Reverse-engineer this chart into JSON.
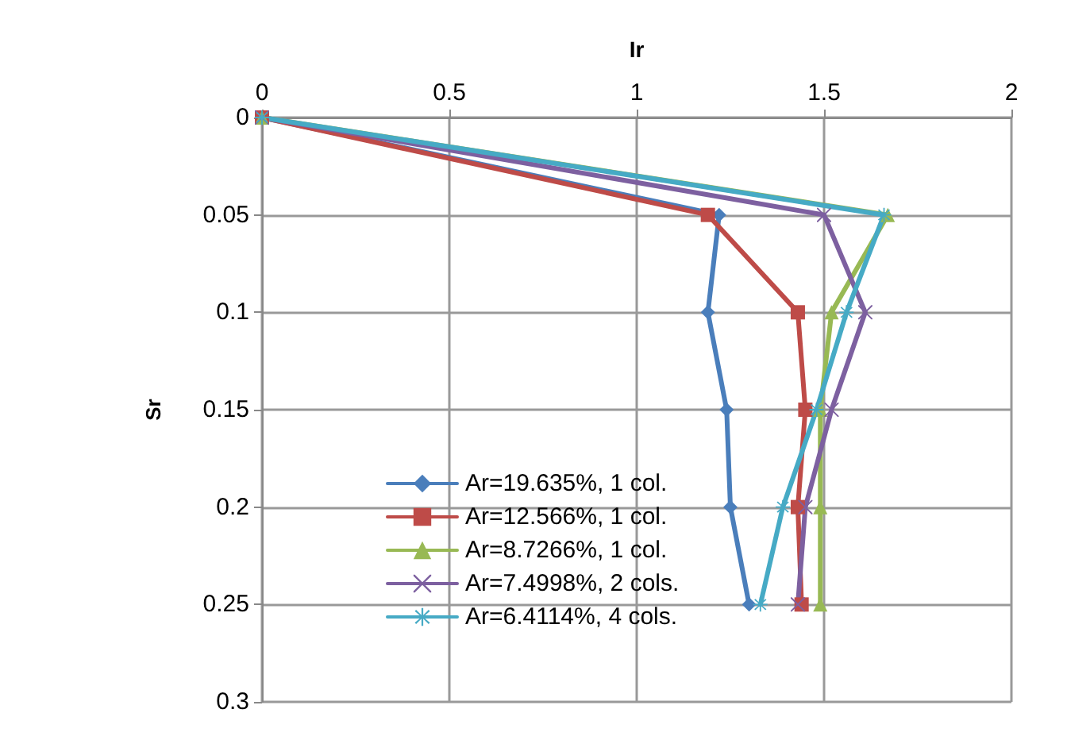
{
  "chart_data": {
    "type": "line",
    "xlabel": "Ir",
    "ylabel": "Sr",
    "xlim": [
      0,
      2
    ],
    "xticks": [
      0,
      0.5,
      1,
      1.5,
      2
    ],
    "ylim": [
      0.3,
      0
    ],
    "yticks": [
      0,
      0.05,
      0.1,
      0.15,
      0.2,
      0.25,
      0.3
    ],
    "grid": true,
    "legend": "bottom left",
    "series": [
      {
        "name": "Ar=19.635%, 1 col.",
        "color": "#4a7ebb",
        "marker": "diamond",
        "x": [
          0,
          1.22,
          1.19,
          1.24,
          1.25,
          1.3
        ],
        "values": [
          0,
          0.05,
          0.1,
          0.15,
          0.2,
          0.25
        ]
      },
      {
        "name": "Ar=12.566%, 1 col.",
        "color": "#be4b48",
        "marker": "square",
        "x": [
          0,
          1.19,
          1.43,
          1.45,
          1.43,
          1.44
        ],
        "values": [
          0,
          0.05,
          0.1,
          0.15,
          0.2,
          0.25
        ]
      },
      {
        "name": "Ar=8.7266%, 1 col.",
        "color": "#98b954",
        "marker": "triangle",
        "x": [
          0,
          1.67,
          1.52,
          1.49,
          1.49,
          1.49
        ],
        "values": [
          0,
          0.05,
          0.1,
          0.15,
          0.2,
          0.25
        ]
      },
      {
        "name": "Ar=7.4998%, 2 cols.",
        "color": "#7d60a0",
        "marker": "cross",
        "x": [
          0,
          1.5,
          1.61,
          1.52,
          1.45,
          1.43
        ],
        "values": [
          0,
          0.05,
          0.1,
          0.15,
          0.2,
          0.25
        ]
      },
      {
        "name": "Ar=6.4114%, 4 cols.",
        "color": "#46aac5",
        "marker": "star",
        "x": [
          0,
          1.66,
          1.56,
          1.48,
          1.39,
          1.33
        ],
        "values": [
          0,
          0.05,
          0.1,
          0.15,
          0.2,
          0.25
        ]
      }
    ]
  }
}
